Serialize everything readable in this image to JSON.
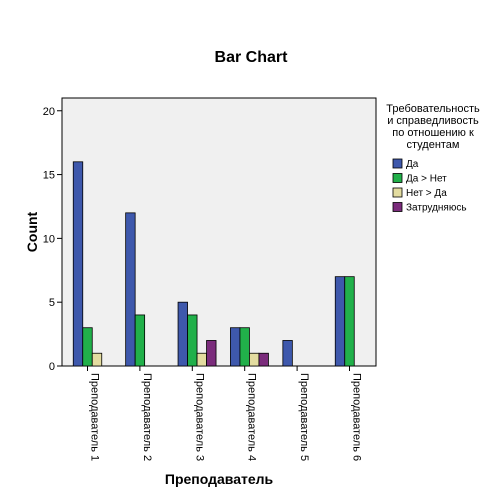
{
  "chart_data": {
    "type": "bar",
    "title": "Bar Chart",
    "xlabel": "Преподаватель",
    "ylabel": "Count",
    "ylim": [
      0,
      21
    ],
    "yticks": [
      0,
      5,
      10,
      15,
      20
    ],
    "categories": [
      "Преподаватель 1",
      "Преподаватель 2",
      "Преподаватель 3",
      "Преподаватель 4",
      "Преподаватель 5",
      "Преподаватель 6"
    ],
    "legend": {
      "title_lines": [
        "Требовательность",
        "и справедливость",
        "по отношению к",
        "студентам"
      ],
      "placement": "right"
    },
    "series": [
      {
        "name": "Да",
        "color": "#3e58ac",
        "values": [
          16,
          12,
          5,
          3,
          2,
          7
        ]
      },
      {
        "name": "Да > Нет",
        "color": "#21b04a",
        "values": [
          3,
          4,
          4,
          3,
          0,
          7
        ]
      },
      {
        "name": "Нет > Да",
        "color": "#e3dca0",
        "values": [
          1,
          0,
          1,
          1,
          0,
          0
        ]
      },
      {
        "name": "Затрудняюсь",
        "color": "#7b2c7c",
        "values": [
          0,
          0,
          2,
          1,
          0,
          0
        ]
      }
    ],
    "grid": false,
    "plot_background": "#f0f0f0"
  }
}
